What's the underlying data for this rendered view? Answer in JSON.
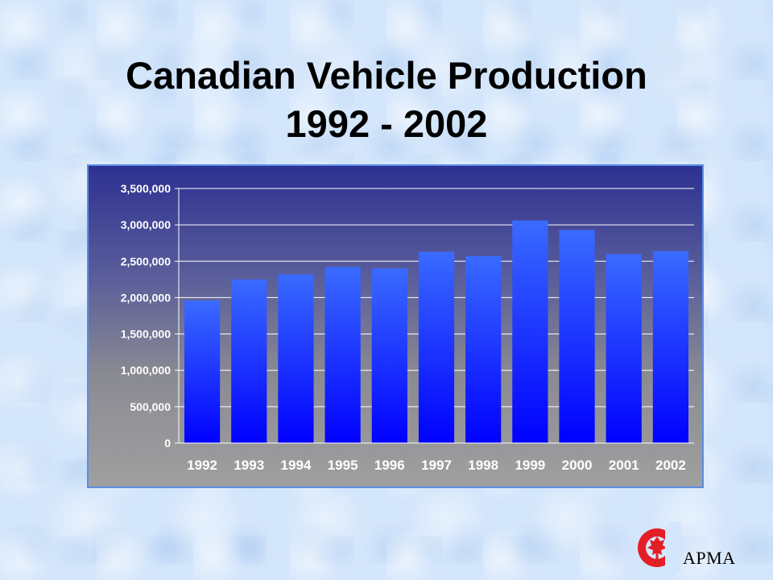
{
  "title": {
    "line1": "Canadian Vehicle Production",
    "line2": "1992 - 2002"
  },
  "logo": {
    "text": "APMA",
    "icon": "apma-maple-leaf-icon",
    "color": "#e41e26"
  },
  "colors": {
    "bar_top": "#3a6bff",
    "bar_bottom": "#0000ff"
  },
  "chart_data": {
    "type": "bar",
    "title": "",
    "xlabel": "",
    "ylabel": "",
    "categories": [
      "1992",
      "1993",
      "1994",
      "1995",
      "1996",
      "1997",
      "1998",
      "1999",
      "2000",
      "2001",
      "2002"
    ],
    "values": [
      1960000,
      2250000,
      2320000,
      2420000,
      2400000,
      2630000,
      2570000,
      3060000,
      2930000,
      2600000,
      2640000
    ],
    "ylim": [
      0,
      3500000
    ],
    "yticks": [
      0,
      500000,
      1000000,
      1500000,
      2000000,
      2500000,
      3000000,
      3500000
    ],
    "ytick_labels": [
      "0",
      "500,000",
      "1,000,000",
      "1,500,000",
      "2,000,000",
      "2,500,000",
      "3,000,000",
      "3,500,000"
    ],
    "grid": true,
    "legend": "none"
  }
}
